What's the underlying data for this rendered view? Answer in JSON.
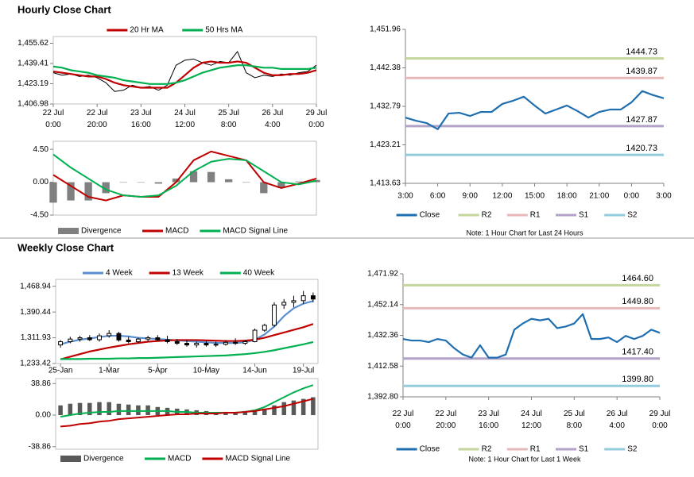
{
  "sections": [
    "Hourly Close Chart",
    "Weekly Close Chart"
  ],
  "chart_data": [
    {
      "type": "line",
      "x": [
        0,
        4,
        8,
        12,
        16,
        20,
        24,
        28,
        32,
        36,
        40,
        44,
        48,
        52,
        56,
        60,
        64,
        68,
        72,
        76,
        80,
        84,
        88,
        92,
        96,
        100,
        104,
        108,
        112,
        116,
        120
      ],
      "xlim": [
        0,
        120
      ],
      "xticks": [
        {
          "value": 0,
          "label": "22 Jul 0:00"
        },
        {
          "value": 20,
          "label": "22 Jul 20:00"
        },
        {
          "value": 40,
          "label": "23 Jul 16:00"
        },
        {
          "value": 60,
          "label": "24 Jul 12:00"
        },
        {
          "value": 80,
          "label": "25 Jul 8:00"
        },
        {
          "value": 100,
          "label": "26 Jul 4:00"
        },
        {
          "value": 120,
          "label": "29 Jul 0:00"
        }
      ],
      "ylim": [
        1406.98,
        1461
      ],
      "yticks": [
        {
          "value": 1406.98,
          "label": "1,406.98"
        },
        {
          "value": 1423.19,
          "label": "1,423.19"
        },
        {
          "value": 1439.41,
          "label": "1,439.41"
        },
        {
          "value": 1455.62,
          "label": "1,455.62"
        }
      ],
      "series": [
        {
          "color": "#000000",
          "values": [
            1432,
            1430,
            1431,
            1429,
            1430,
            1428,
            1424,
            1417,
            1418,
            1422,
            1420,
            1421,
            1418,
            1422,
            1438,
            1442,
            1443,
            1440,
            1438,
            1441,
            1440,
            1449,
            1432,
            1428,
            1430,
            1429,
            1431,
            1430,
            1432,
            1433,
            1438
          ]
        },
        {
          "name": "20 Hr MA",
          "color": "#c00000",
          "values": [
            1433,
            1432,
            1431,
            1430,
            1429,
            1429,
            1427,
            1424,
            1422,
            1421,
            1420,
            1420,
            1420,
            1420,
            1424,
            1430,
            1436,
            1440,
            1441,
            1440,
            1440,
            1441,
            1440,
            1436,
            1432,
            1430,
            1430,
            1431,
            1431,
            1432,
            1434
          ]
        },
        {
          "name": "50 Hrs MA",
          "color": "#00b050",
          "values": [
            1437,
            1436,
            1434,
            1433,
            1432,
            1430,
            1429,
            1428,
            1426,
            1425,
            1424,
            1423,
            1423,
            1423,
            1424,
            1426,
            1429,
            1432,
            1434,
            1436,
            1437,
            1438,
            1438,
            1437,
            1436,
            1436,
            1435,
            1435,
            1435,
            1435,
            1436
          ]
        }
      ]
    },
    {
      "type": "macd",
      "x": [
        0,
        8,
        16,
        24,
        32,
        40,
        48,
        56,
        64,
        72,
        80,
        88,
        96,
        104,
        112,
        120
      ],
      "xlim": [
        0,
        120
      ],
      "ylim": [
        -4.5,
        5.6
      ],
      "yticks": [
        {
          "value": -4.5,
          "label": "-4.50"
        },
        {
          "value": 0,
          "label": "0.00"
        },
        {
          "value": 4.5,
          "label": "4.50"
        }
      ],
      "series": [
        {
          "name": "Divergence",
          "style": "bar",
          "color": "#808080",
          "values": [
            -2.8,
            -2.5,
            -2.5,
            -1.5,
            0.0,
            0.0,
            -0.2,
            0.5,
            1.5,
            1.4,
            0.4,
            0.0,
            -1.5,
            -0.8,
            0.1,
            0.3
          ]
        },
        {
          "name": "MACD",
          "style": "line",
          "color": "#c00000",
          "values": [
            1.0,
            -0.5,
            -2.0,
            -2.5,
            -1.8,
            -2.0,
            -2.0,
            0.0,
            3.0,
            4.2,
            3.6,
            3.0,
            0.0,
            -0.8,
            -0.2,
            0.5
          ]
        },
        {
          "name": "MACD Signal Line",
          "style": "line",
          "color": "#00b050",
          "values": [
            3.8,
            2.0,
            0.5,
            -1.0,
            -1.8,
            -2.0,
            -1.8,
            -0.5,
            1.5,
            2.8,
            3.2,
            3.0,
            1.5,
            0.0,
            -0.3,
            0.2
          ]
        }
      ]
    },
    {
      "type": "line",
      "x": [
        0,
        1,
        2,
        3,
        4,
        5,
        6,
        7,
        8,
        9,
        10,
        11,
        12,
        13,
        14,
        15,
        16,
        17,
        18,
        19,
        20,
        21,
        22,
        23,
        24
      ],
      "xlim": [
        0,
        24
      ],
      "xticks": [
        {
          "value": 0,
          "label": "3:00"
        },
        {
          "value": 3,
          "label": "6:00"
        },
        {
          "value": 6,
          "label": "9:00"
        },
        {
          "value": 9,
          "label": "12:00"
        },
        {
          "value": 12,
          "label": "15:00"
        },
        {
          "value": 15,
          "label": "18:00"
        },
        {
          "value": 18,
          "label": "21:00"
        },
        {
          "value": 21,
          "label": "0:00"
        },
        {
          "value": 24,
          "label": "3:00"
        }
      ],
      "ylim": [
        1413.63,
        1451.96
      ],
      "yticks": [
        {
          "value": 1413.63,
          "label": "1,413.63"
        },
        {
          "value": 1423.21,
          "label": "1,423.21"
        },
        {
          "value": 1432.79,
          "label": "1,432.79"
        },
        {
          "value": 1442.38,
          "label": "1,442.38"
        },
        {
          "value": 1451.96,
          "label": "1,451.96"
        }
      ],
      "series": [
        {
          "name": "Close",
          "color": "#1f6fb0",
          "values": [
            1430.0,
            1429.2,
            1428.6,
            1427.1,
            1431.0,
            1431.2,
            1430.4,
            1431.4,
            1431.4,
            1433.4,
            1434.2,
            1435.2,
            1433.0,
            1431.0,
            1432.0,
            1433.0,
            1431.6,
            1430.0,
            1431.4,
            1432.0,
            1432.0,
            1433.8,
            1436.6,
            1435.6,
            1434.8
          ]
        }
      ],
      "levels": [
        {
          "name": "R2",
          "value": 1444.73,
          "color": "#c3d69b"
        },
        {
          "name": "R1",
          "value": 1439.87,
          "color": "#e6b9b8"
        },
        {
          "name": "S1",
          "value": 1427.87,
          "color": "#b3a2c7"
        },
        {
          "name": "S2",
          "value": 1420.73,
          "color": "#93cddd"
        }
      ],
      "note": "Note: 1 Hour Chart for Last 24 Hours"
    },
    {
      "type": "candlestick",
      "x": [
        0,
        1,
        2,
        3,
        4,
        5,
        6,
        7,
        8,
        9,
        10,
        11,
        12,
        13,
        14,
        15,
        16,
        17,
        18,
        19,
        20,
        21,
        22,
        23,
        24,
        25,
        26
      ],
      "xlim": [
        -0.5,
        26.5
      ],
      "xticks": [
        {
          "value": 0,
          "label": "25-Jan"
        },
        {
          "value": 5,
          "label": "1-Mar"
        },
        {
          "value": 10,
          "label": "5-Apr"
        },
        {
          "value": 15,
          "label": "10-May"
        },
        {
          "value": 20,
          "label": "14-Jun"
        },
        {
          "value": 25,
          "label": "19-Jul"
        }
      ],
      "ylim": [
        1233.42,
        1490
      ],
      "yticks": [
        {
          "value": 1233.42,
          "label": "1,233.42"
        },
        {
          "value": 1311.93,
          "label": "1,311.93"
        },
        {
          "value": 1390.44,
          "label": "1,390.44"
        },
        {
          "value": 1468.94,
          "label": "1,468.94"
        }
      ],
      "ohlc": {
        "open": [
          1290,
          1300,
          1308,
          1312,
          1306,
          1318,
          1325,
          1305,
          1300,
          1308,
          1312,
          1306,
          1300,
          1295,
          1290,
          1295,
          1290,
          1292,
          1298,
          1295,
          1300,
          1335,
          1350,
          1412,
          1420,
          1425,
          1440
        ],
        "high": [
          1305,
          1315,
          1318,
          1320,
          1325,
          1335,
          1330,
          1315,
          1312,
          1318,
          1320,
          1318,
          1308,
          1305,
          1300,
          1302,
          1300,
          1305,
          1310,
          1305,
          1340,
          1355,
          1420,
          1430,
          1440,
          1455,
          1450
        ],
        "low": [
          1282,
          1295,
          1300,
          1302,
          1300,
          1312,
          1300,
          1295,
          1296,
          1300,
          1302,
          1295,
          1290,
          1285,
          1282,
          1285,
          1284,
          1288,
          1290,
          1290,
          1298,
          1330,
          1345,
          1400,
          1405,
          1415,
          1420
        ],
        "close": [
          1300,
          1308,
          1312,
          1306,
          1318,
          1325,
          1305,
          1300,
          1308,
          1312,
          1306,
          1300,
          1295,
          1290,
          1295,
          1290,
          1292,
          1298,
          1295,
          1300,
          1335,
          1350,
          1412,
          1420,
          1425,
          1440,
          1430
        ]
      },
      "series": [
        {
          "name": "4 Week",
          "color": "#5b8fd0",
          "values": [
            1292,
            1300,
            1306,
            1310,
            1314,
            1318,
            1318,
            1316,
            1312,
            1310,
            1308,
            1306,
            1304,
            1302,
            1300,
            1298,
            1296,
            1296,
            1296,
            1298,
            1306,
            1322,
            1346,
            1378,
            1402,
            1416,
            1424
          ]
        },
        {
          "name": "13 Week",
          "color": "#c00000",
          "values": [
            1246,
            1254,
            1262,
            1270,
            1276,
            1282,
            1287,
            1292,
            1296,
            1300,
            1302,
            1304,
            1305,
            1305,
            1305,
            1304,
            1303,
            1302,
            1302,
            1303,
            1306,
            1312,
            1320,
            1328,
            1336,
            1344,
            1354
          ]
        },
        {
          "name": "40 Week",
          "color": "#00b050",
          "values": [
            1247,
            1247,
            1247,
            1248,
            1248,
            1248,
            1249,
            1249,
            1250,
            1250,
            1251,
            1252,
            1253,
            1254,
            1255,
            1256,
            1257,
            1258,
            1260,
            1262,
            1265,
            1269,
            1274,
            1280,
            1286,
            1292,
            1299
          ]
        }
      ]
    },
    {
      "type": "macd",
      "x": [
        0,
        1,
        2,
        3,
        4,
        5,
        6,
        7,
        8,
        9,
        10,
        11,
        12,
        13,
        14,
        15,
        16,
        17,
        18,
        19,
        20,
        21,
        22,
        23,
        24,
        25,
        26
      ],
      "xlim": [
        -0.5,
        26.5
      ],
      "ylim": [
        -42,
        45
      ],
      "yticks": [
        -38.86,
        {
          "value": 0,
          "label": "0.00"
        },
        38.86
      ],
      "series": [
        {
          "name": "Divergence",
          "style": "bar",
          "color": "#595959",
          "values": [
            12,
            14,
            15,
            15,
            16,
            16,
            14,
            13,
            12,
            12,
            10,
            9,
            8,
            7,
            6,
            5,
            4,
            4,
            4,
            5,
            6,
            8,
            12,
            16,
            18,
            20,
            22
          ]
        },
        {
          "name": "MACD",
          "style": "line",
          "color": "#00b050",
          "values": [
            -2,
            0,
            2,
            3,
            4,
            4,
            5,
            5,
            5,
            5,
            5,
            5,
            4,
            4,
            3,
            3,
            3,
            3,
            3,
            4,
            6,
            10,
            16,
            22,
            28,
            33,
            37
          ]
        },
        {
          "name": "MACD Signal Line",
          "style": "line",
          "color": "#c00000",
          "values": [
            -14,
            -13,
            -11,
            -10,
            -8,
            -7,
            -5,
            -4,
            -3,
            -2,
            -1,
            0,
            1,
            1,
            2,
            2,
            2,
            3,
            3,
            4,
            5,
            7,
            9,
            11,
            14,
            17,
            20
          ]
        }
      ]
    },
    {
      "type": "line",
      "x": [
        0,
        4,
        8,
        12,
        16,
        20,
        24,
        28,
        32,
        36,
        40,
        44,
        48,
        52,
        56,
        60,
        64,
        68,
        72,
        76,
        80,
        84,
        88,
        92,
        96,
        100,
        104,
        108,
        112,
        116,
        120
      ],
      "xlim": [
        0,
        120
      ],
      "xticks": [
        {
          "value": 0,
          "label": "22 Jul 0:00"
        },
        {
          "value": 20,
          "label": "22 Jul 20:00"
        },
        {
          "value": 40,
          "label": "23 Jul 16:00"
        },
        {
          "value": 60,
          "label": "24 Jul 12:00"
        },
        {
          "value": 80,
          "label": "25 Jul 8:00"
        },
        {
          "value": 100,
          "label": "26 Jul 4:00"
        },
        {
          "value": 120,
          "label": "29 Jul 0:00"
        }
      ],
      "ylim": [
        1392.8,
        1471.92
      ],
      "yticks": [
        {
          "value": 1392.8,
          "label": "1,392.80"
        },
        {
          "value": 1412.58,
          "label": "1,412.58"
        },
        {
          "value": 1432.36,
          "label": "1,432.36"
        },
        {
          "value": 1452.14,
          "label": "1,452.14"
        },
        {
          "value": 1471.92,
          "label": "1,471.92"
        }
      ],
      "series": [
        {
          "name": "Close",
          "color": "#1f6fb0",
          "values": [
            1430,
            1429,
            1429,
            1428,
            1430,
            1429,
            1424,
            1420,
            1418,
            1426,
            1418,
            1418,
            1420,
            1436,
            1440,
            1443,
            1442,
            1443,
            1437,
            1438,
            1440,
            1446,
            1430,
            1430,
            1431,
            1428,
            1432,
            1430,
            1432,
            1436,
            1434
          ]
        }
      ],
      "levels": [
        {
          "name": "R2",
          "value": 1464.6,
          "label": "1464.60",
          "color": "#c3d69b"
        },
        {
          "name": "R1",
          "value": 1449.8,
          "label": "1449.80",
          "color": "#e6b9b8"
        },
        {
          "name": "S1",
          "value": 1417.4,
          "label": "1417.40",
          "color": "#b3a2c7"
        },
        {
          "name": "S2",
          "value": 1399.8,
          "label": "1399.80",
          "color": "#93cddd"
        }
      ],
      "note": "Note: 1 Hour Chart for Last 1 Week"
    }
  ]
}
